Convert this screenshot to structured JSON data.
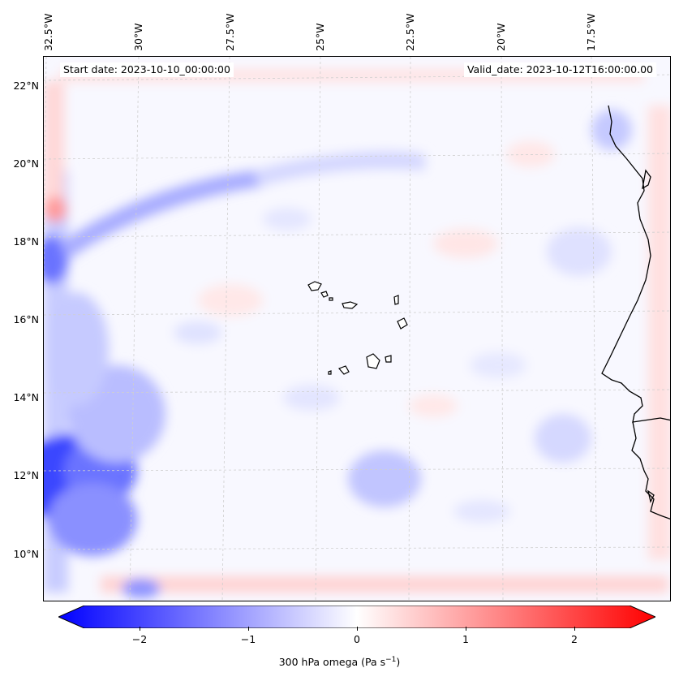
{
  "header": {
    "start_date": "Start date: 2023-10-10_00:00:00",
    "valid_date": "Valid_date: 2023-10-12T16:00:00.00"
  },
  "longitude_labels": [
    "32.5°W",
    "30°W",
    "27.5°W",
    "25°W",
    "22.5°W",
    "20°W",
    "17.5°W"
  ],
  "latitude_labels": [
    "22°N",
    "20°N",
    "18°N",
    "16°N",
    "14°N",
    "12°N",
    "10°N"
  ],
  "colorbar": {
    "tick_labels": [
      "−2",
      "−1",
      "0",
      "1",
      "2"
    ],
    "title": "300 hPa omega (Pa s",
    "title_sup": "−1",
    "title_end": ")",
    "range": [
      -2.7,
      2.7
    ],
    "colors": {
      "low": "#0000ff",
      "mid": "#ffffff",
      "high": "#ff0000"
    }
  },
  "map": {
    "field": "300 hPa omega",
    "coastline_color": "#000000",
    "gridlines": true
  }
}
